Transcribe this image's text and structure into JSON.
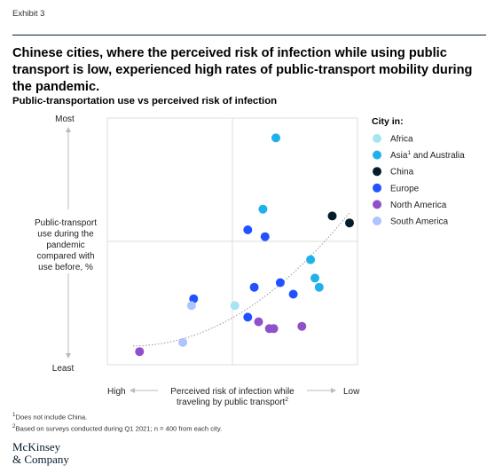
{
  "exhibit_label": "Exhibit 3",
  "headline": "Chinese cities, where the perceived risk of infection while using public transport is low, experienced high rates of public-transport mobility during the pandemic.",
  "colors": {
    "Africa": "#a7e4f2",
    "Asia and Australia": "#1eb1ea",
    "China": "#051c2c",
    "Europe": "#2251ff",
    "North America": "#8f50c9",
    "South America": "#afc3ff"
  },
  "chart_data": {
    "type": "scatter",
    "title": "Public-transportation use vs perceived risk of infection",
    "ylabel_lines": [
      "Public-transport",
      "use during the",
      "pandemic",
      "compared with",
      "use before, %"
    ],
    "y_top_label": "Most",
    "y_bottom_label": "Least",
    "x_left_label": "High",
    "x_right_label": "Low",
    "xlabel_line1": "Perceived risk of infection while",
    "xlabel_line2": "traveling by public transport",
    "xlabel_sup": "2",
    "xlim": [
      0,
      100
    ],
    "ylim": [
      0,
      100
    ],
    "grid": "center cross lines",
    "trendline": "dotted, increasing",
    "legend_title": "City in:",
    "legend_position": "right",
    "series": [
      {
        "name": "Africa",
        "sup": "",
        "points": [
          [
            47,
            23
          ]
        ]
      },
      {
        "name": "Asia",
        "sup": "1",
        "name_suffix": " and Australia",
        "points": [
          [
            66,
            96
          ],
          [
            60,
            65
          ],
          [
            82,
            43
          ],
          [
            84,
            35
          ],
          [
            86,
            31
          ]
        ]
      },
      {
        "name": "China",
        "sup": "",
        "points": [
          [
            92,
            62
          ],
          [
            100,
            59
          ]
        ]
      },
      {
        "name": "Europe",
        "sup": "",
        "points": [
          [
            53,
            56
          ],
          [
            61,
            53
          ],
          [
            28,
            26
          ],
          [
            56,
            31
          ],
          [
            68,
            33
          ],
          [
            74,
            28
          ],
          [
            53,
            18
          ]
        ]
      },
      {
        "name": "North America",
        "sup": "",
        "points": [
          [
            3,
            3
          ],
          [
            58,
            16
          ],
          [
            63,
            13
          ],
          [
            65,
            13
          ],
          [
            78,
            14
          ]
        ]
      },
      {
        "name": "South America",
        "sup": "",
        "points": [
          [
            27,
            23
          ],
          [
            23,
            7
          ]
        ]
      }
    ]
  },
  "footnotes": [
    {
      "sup": "1",
      "text": "Does not include China."
    },
    {
      "sup": "2",
      "text": "Based on surveys conducted during Q1 2021; n = 400 from each city."
    }
  ],
  "logo_lines": [
    "McKinsey",
    "& Company"
  ]
}
